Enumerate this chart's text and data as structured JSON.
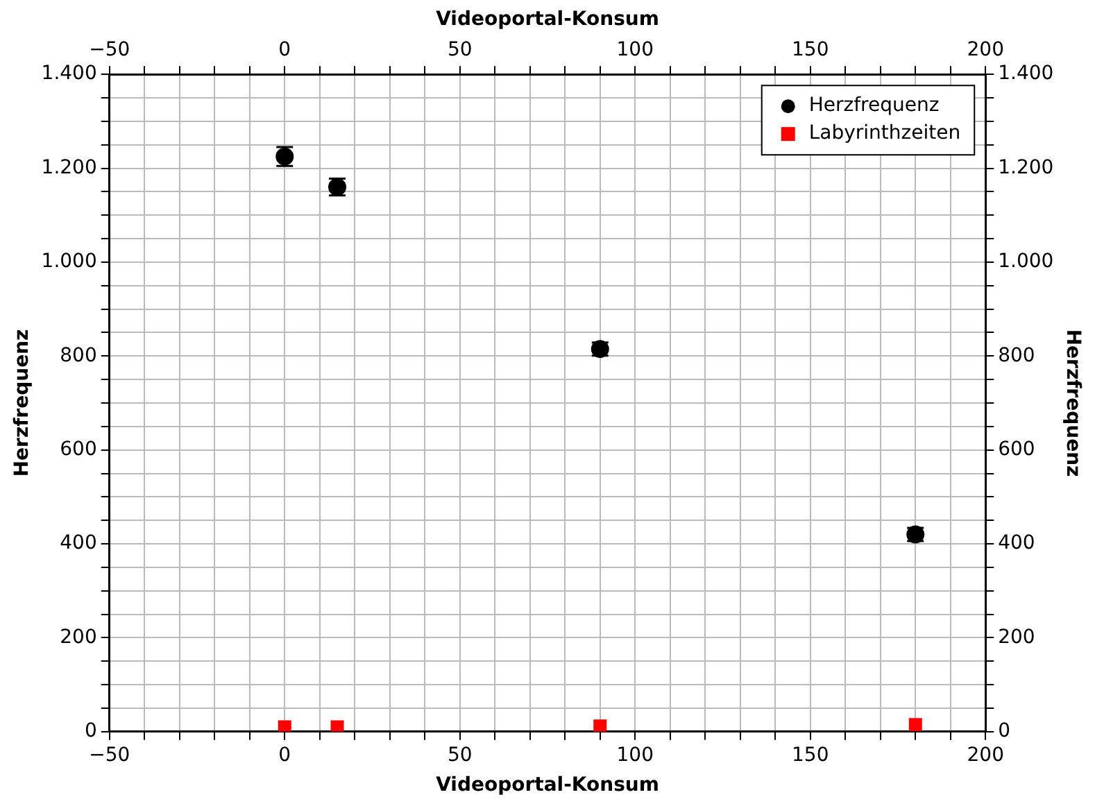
{
  "chart_data": {
    "type": "scatter",
    "xlabel": "Videoportal-Konsum",
    "x2label": "Videoportal-Konsum",
    "ylabel": "Herzfrequenz",
    "y2label": "Herzfrequenz",
    "xlim": [
      -50,
      200
    ],
    "x2lim": [
      -50,
      200
    ],
    "ylim": [
      0,
      1400
    ],
    "y2lim": [
      0,
      1400
    ],
    "xticks": [
      {
        "value": -50,
        "label": "−50"
      },
      {
        "value": -40,
        "label": null
      },
      {
        "value": -30,
        "label": null
      },
      {
        "value": -20,
        "label": null
      },
      {
        "value": -10,
        "label": null
      },
      0,
      {
        "value": 10,
        "label": null
      },
      {
        "value": 20,
        "label": null
      },
      {
        "value": 30,
        "label": null
      },
      {
        "value": 40,
        "label": null
      },
      50,
      {
        "value": 60,
        "label": null
      },
      {
        "value": 70,
        "label": null
      },
      {
        "value": 80,
        "label": null
      },
      {
        "value": 90,
        "label": null
      },
      100,
      {
        "value": 110,
        "label": null
      },
      {
        "value": 120,
        "label": null
      },
      {
        "value": 130,
        "label": null
      },
      {
        "value": 140,
        "label": null
      },
      150,
      {
        "value": 160,
        "label": null
      },
      {
        "value": 170,
        "label": null
      },
      {
        "value": 180,
        "label": null
      },
      {
        "value": 190,
        "label": null
      },
      200
    ],
    "x2ticks": [
      {
        "value": -50,
        "label": "−50"
      },
      {
        "value": -40,
        "label": null
      },
      {
        "value": -30,
        "label": null
      },
      {
        "value": -20,
        "label": null
      },
      {
        "value": -10,
        "label": null
      },
      0,
      {
        "value": 10,
        "label": null
      },
      {
        "value": 20,
        "label": null
      },
      {
        "value": 30,
        "label": null
      },
      {
        "value": 40,
        "label": null
      },
      50,
      {
        "value": 60,
        "label": null
      },
      {
        "value": 70,
        "label": null
      },
      {
        "value": 80,
        "label": null
      },
      {
        "value": 90,
        "label": null
      },
      100,
      {
        "value": 110,
        "label": null
      },
      {
        "value": 120,
        "label": null
      },
      {
        "value": 130,
        "label": null
      },
      {
        "value": 140,
        "label": null
      },
      150,
      {
        "value": 160,
        "label": null
      },
      {
        "value": 170,
        "label": null
      },
      {
        "value": 180,
        "label": null
      },
      {
        "value": 190,
        "label": null
      },
      200
    ],
    "yticks": [
      0,
      {
        "value": 50,
        "label": null
      },
      {
        "value": 100,
        "label": null
      },
      {
        "value": 150,
        "label": null
      },
      200,
      {
        "value": 250,
        "label": null
      },
      {
        "value": 300,
        "label": null
      },
      {
        "value": 350,
        "label": null
      },
      400,
      {
        "value": 450,
        "label": null
      },
      {
        "value": 500,
        "label": null
      },
      {
        "value": 550,
        "label": null
      },
      600,
      {
        "value": 650,
        "label": null
      },
      {
        "value": 700,
        "label": null
      },
      {
        "value": 750,
        "label": null
      },
      800,
      {
        "value": 850,
        "label": null
      },
      {
        "value": 900,
        "label": null
      },
      {
        "value": 950,
        "label": null
      },
      {
        "value": 1000,
        "label": "1.000"
      },
      {
        "value": 1050,
        "label": null
      },
      {
        "value": 1100,
        "label": null
      },
      {
        "value": 1150,
        "label": null
      },
      {
        "value": 1200,
        "label": "1.200"
      },
      {
        "value": 1250,
        "label": null
      },
      {
        "value": 1300,
        "label": null
      },
      {
        "value": 1350,
        "label": null
      },
      {
        "value": 1400,
        "label": "1.400"
      }
    ],
    "y2ticks": [
      0,
      {
        "value": 50,
        "label": null
      },
      {
        "value": 100,
        "label": null
      },
      {
        "value": 150,
        "label": null
      },
      200,
      {
        "value": 250,
        "label": null
      },
      {
        "value": 300,
        "label": null
      },
      {
        "value": 350,
        "label": null
      },
      400,
      {
        "value": 450,
        "label": null
      },
      {
        "value": 500,
        "label": null
      },
      {
        "value": 550,
        "label": null
      },
      600,
      {
        "value": 650,
        "label": null
      },
      {
        "value": 700,
        "label": null
      },
      {
        "value": 750,
        "label": null
      },
      800,
      {
        "value": 850,
        "label": null
      },
      {
        "value": 900,
        "label": null
      },
      {
        "value": 950,
        "label": null
      },
      {
        "value": 1000,
        "label": "1.000"
      },
      {
        "value": 1050,
        "label": null
      },
      {
        "value": 1100,
        "label": null
      },
      {
        "value": 1150,
        "label": null
      },
      {
        "value": 1200,
        "label": "1.200"
      },
      {
        "value": 1250,
        "label": null
      },
      {
        "value": 1300,
        "label": null
      },
      {
        "value": 1350,
        "label": null
      },
      {
        "value": 1400,
        "label": "1.400"
      }
    ],
    "grid": true,
    "legend": "top right",
    "series": [
      {
        "name": "Herzfrequenz",
        "color": "#000000",
        "marker": "circle",
        "x": [
          0,
          15,
          90,
          180
        ],
        "values": [
          1225,
          1160,
          815,
          420
        ],
        "errors": [
          20,
          18,
          14,
          14
        ]
      },
      {
        "name": "Labyrinthzeiten",
        "color": "#ff0000",
        "marker": "square",
        "x": [
          0,
          15,
          90,
          180
        ],
        "values": [
          10,
          10,
          12,
          15
        ]
      }
    ]
  }
}
